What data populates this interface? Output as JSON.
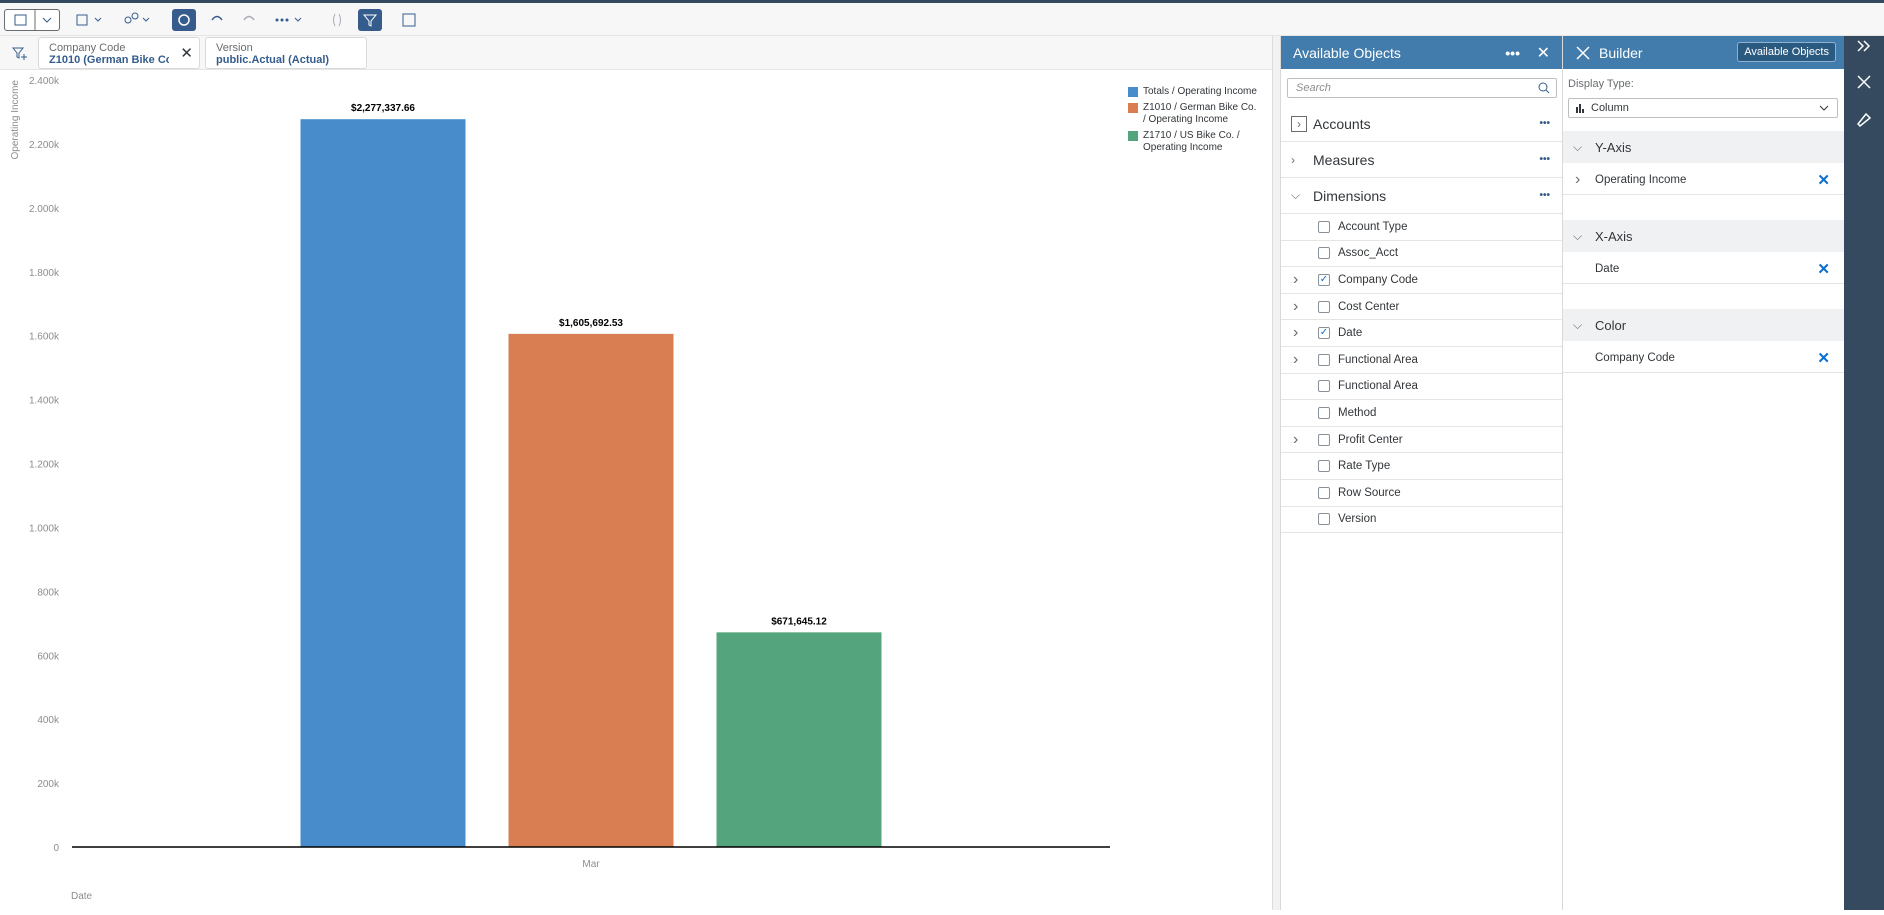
{
  "filters": [
    {
      "label": "Company Code",
      "value": "Z1010 (German Bike Co...."
    },
    {
      "label": "Version",
      "value": "public.Actual (Actual)"
    }
  ],
  "chart_data": {
    "type": "bar",
    "y_label": "Operating Income",
    "x_label": "Date",
    "categories": [
      "Mar"
    ],
    "series": [
      {
        "name": "Totals / Operating Income",
        "color": "#488ccc",
        "values": [
          2277337.66
        ],
        "value_labels": [
          "$2,277,337.66"
        ]
      },
      {
        "name": "Z1010 / German Bike Co. / Operating Income",
        "color": "#d97e52",
        "values": [
          1605692.53
        ],
        "value_labels": [
          "$1,605,692.53"
        ]
      },
      {
        "name": "Z1710 / US Bike Co. / Operating Income",
        "color": "#54a47e",
        "values": [
          671645.12
        ],
        "value_labels": [
          "$671,645.12"
        ]
      }
    ],
    "ylim": [
      0,
      2400000
    ],
    "yticks": [
      0,
      {
        "value": 200000,
        "label": "200k"
      },
      {
        "value": 400000,
        "label": "400k"
      },
      {
        "value": 600000,
        "label": "600k"
      },
      {
        "value": 800000,
        "label": "800k"
      },
      {
        "value": 1000000,
        "label": "1.000k"
      },
      {
        "value": 1200000,
        "label": "1.200k"
      },
      {
        "value": 1400000,
        "label": "1.400k"
      },
      {
        "value": 1600000,
        "label": "1.600k"
      },
      {
        "value": 1800000,
        "label": "1.800k"
      },
      {
        "value": 2000000,
        "label": "2.000k"
      },
      {
        "value": 2200000,
        "label": "2.200k"
      },
      {
        "value": 2400000,
        "label": "2.400k"
      }
    ],
    "grid": false,
    "legend": "right"
  },
  "available_objects": {
    "title": "Available Objects",
    "search_placeholder": "Search",
    "groups": [
      {
        "name": "Accounts",
        "expanded": false
      },
      {
        "name": "Measures",
        "expanded": false
      },
      {
        "name": "Dimensions",
        "expanded": true,
        "items": [
          {
            "name": "Account Type",
            "checked": false,
            "expandable": false
          },
          {
            "name": "Assoc_Acct",
            "checked": false,
            "expandable": false
          },
          {
            "name": "Company Code",
            "checked": true,
            "expandable": true
          },
          {
            "name": "Cost Center",
            "checked": false,
            "expandable": true
          },
          {
            "name": "Date",
            "checked": true,
            "expandable": true
          },
          {
            "name": "Functional Area",
            "checked": false,
            "expandable": true
          },
          {
            "name": "Functional Area",
            "checked": false,
            "expandable": false
          },
          {
            "name": "Method",
            "checked": false,
            "expandable": false
          },
          {
            "name": "Profit Center",
            "checked": false,
            "expandable": true
          },
          {
            "name": "Rate Type",
            "checked": false,
            "expandable": false
          },
          {
            "name": "Row Source",
            "checked": false,
            "expandable": false
          },
          {
            "name": "Version",
            "checked": false,
            "expandable": false
          }
        ]
      }
    ]
  },
  "builder": {
    "title": "Builder",
    "button": "Available Objects",
    "display_type_label": "Display Type:",
    "display_type": "Column",
    "sections": [
      {
        "title": "Y-Axis",
        "items": [
          {
            "name": "Operating Income",
            "expandable": true
          }
        ]
      },
      {
        "title": "X-Axis",
        "items": [
          {
            "name": "Date",
            "expandable": false
          }
        ]
      },
      {
        "title": "Color",
        "items": [
          {
            "name": "Company Code",
            "expandable": false
          }
        ]
      }
    ]
  }
}
